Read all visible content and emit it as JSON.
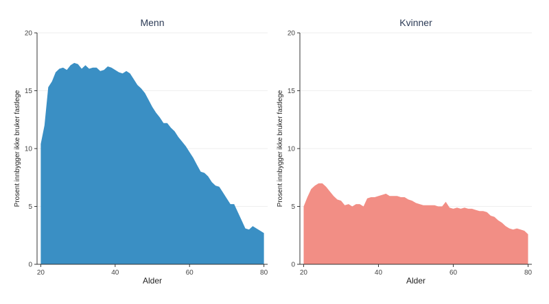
{
  "chart_data": [
    {
      "type": "area",
      "title": "Menn",
      "xlabel": "Alder",
      "ylabel": "Prosent innbygger ikke bruker fastlege",
      "xlim": [
        19,
        81
      ],
      "ylim": [
        0,
        20
      ],
      "xticks": [
        "20",
        "40",
        "60",
        "80"
      ],
      "yticks": [
        "0",
        "5",
        "10",
        "15",
        "20"
      ],
      "color": "#3a8fc4",
      "grid": true,
      "x": [
        20,
        21,
        22,
        23,
        24,
        25,
        26,
        27,
        28,
        29,
        30,
        31,
        32,
        33,
        34,
        35,
        36,
        37,
        38,
        39,
        40,
        41,
        42,
        43,
        44,
        45,
        46,
        47,
        48,
        49,
        50,
        51,
        52,
        53,
        54,
        55,
        56,
        57,
        58,
        59,
        60,
        61,
        62,
        63,
        64,
        65,
        66,
        67,
        68,
        69,
        70,
        71,
        72,
        73,
        74,
        75,
        76,
        77,
        78,
        79,
        80
      ],
      "y": [
        10.4,
        12.0,
        15.3,
        15.8,
        16.6,
        16.9,
        17.0,
        16.8,
        17.2,
        17.4,
        17.3,
        16.9,
        17.2,
        16.9,
        17.0,
        17.0,
        16.7,
        16.8,
        17.1,
        17.0,
        16.8,
        16.6,
        16.5,
        16.7,
        16.5,
        16.0,
        15.5,
        15.2,
        14.8,
        14.2,
        13.6,
        13.1,
        12.7,
        12.2,
        12.2,
        11.8,
        11.5,
        11.0,
        10.6,
        10.2,
        9.7,
        9.2,
        8.6,
        8.0,
        7.9,
        7.6,
        7.1,
        6.8,
        6.7,
        6.2,
        5.7,
        5.2,
        5.2,
        4.5,
        3.8,
        3.1,
        3.0,
        3.3,
        3.1,
        2.9,
        2.7
      ]
    },
    {
      "type": "area",
      "title": "Kvinner",
      "xlabel": "Alder",
      "ylabel": "Prosent innbygger ikke bruker fastlege",
      "xlim": [
        19,
        81
      ],
      "ylim": [
        0,
        20
      ],
      "xticks": [
        "20",
        "40",
        "60",
        "80"
      ],
      "yticks": [
        "0",
        "5",
        "10",
        "15",
        "20"
      ],
      "color": "#f28e85",
      "grid": true,
      "x": [
        20,
        21,
        22,
        23,
        24,
        25,
        26,
        27,
        28,
        29,
        30,
        31,
        32,
        33,
        34,
        35,
        36,
        37,
        38,
        39,
        40,
        41,
        42,
        43,
        44,
        45,
        46,
        47,
        48,
        49,
        50,
        51,
        52,
        53,
        54,
        55,
        56,
        57,
        58,
        59,
        60,
        61,
        62,
        63,
        64,
        65,
        66,
        67,
        68,
        69,
        70,
        71,
        72,
        73,
        74,
        75,
        76,
        77,
        78,
        79,
        80
      ],
      "y": [
        5.0,
        5.8,
        6.5,
        6.8,
        7.0,
        7.0,
        6.7,
        6.3,
        5.9,
        5.6,
        5.5,
        5.1,
        5.2,
        5.0,
        5.2,
        5.2,
        5.0,
        5.7,
        5.8,
        5.8,
        5.9,
        6.0,
        6.1,
        5.9,
        5.9,
        5.9,
        5.8,
        5.8,
        5.6,
        5.5,
        5.3,
        5.2,
        5.1,
        5.1,
        5.1,
        5.1,
        5.0,
        5.0,
        5.4,
        4.9,
        4.8,
        4.9,
        4.8,
        4.9,
        4.8,
        4.8,
        4.7,
        4.6,
        4.6,
        4.5,
        4.2,
        4.1,
        3.8,
        3.6,
        3.3,
        3.1,
        3.0,
        3.1,
        3.0,
        2.9,
        2.6
      ]
    }
  ]
}
